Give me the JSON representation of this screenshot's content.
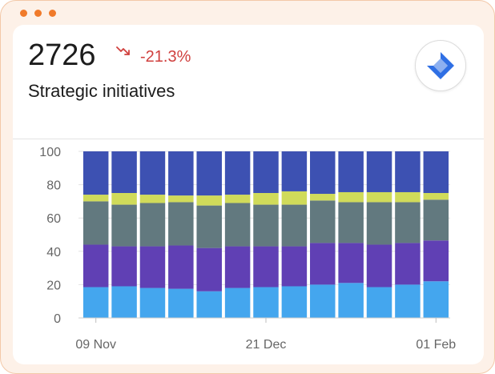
{
  "colors": {
    "frame_dots": "#f07a2a",
    "negative_change": "#d0403e"
  },
  "metric": {
    "value": "2726",
    "change": "-21.3%",
    "trend_icon": "trending-down-icon",
    "label": "Strategic initiatives"
  },
  "logo": {
    "icon": "jira-logo-icon",
    "color": "#2f6fe4"
  },
  "chart_data": {
    "type": "bar",
    "stacked": true,
    "ylim": [
      0,
      100
    ],
    "yticks": [
      "0",
      "20",
      "40",
      "60",
      "80",
      "100"
    ],
    "xticks": [
      {
        "label": "09 Nov",
        "index": 0
      },
      {
        "label": "21 Dec",
        "index": 6
      },
      {
        "label": "01 Feb",
        "index": 12
      }
    ],
    "bar_count": 13,
    "grid": true,
    "legend": "none",
    "series": [
      {
        "color": "#44a6ee",
        "values": [
          18.5,
          19,
          18,
          17.5,
          16,
          18,
          18.5,
          19,
          20,
          21,
          18.5,
          20,
          22
        ]
      },
      {
        "color": "#6040b4",
        "values": [
          25.5,
          24,
          25,
          26,
          26,
          25,
          24.5,
          24,
          25,
          24,
          25.5,
          25,
          24.5
        ]
      },
      {
        "color": "#62797f",
        "values": [
          26,
          25,
          26,
          26,
          25.5,
          26,
          25,
          25,
          25.5,
          24.5,
          25.5,
          24.5,
          24.5
        ]
      },
      {
        "color": "#d0db5a",
        "values": [
          4,
          7,
          5,
          4,
          6,
          5,
          7,
          8,
          4,
          6,
          6,
          6,
          4
        ]
      },
      {
        "color": "#3d51b2",
        "values": [
          26,
          25,
          26,
          26.5,
          26.5,
          26,
          25,
          24,
          25.5,
          24.5,
          24.5,
          24.5,
          25
        ]
      }
    ]
  }
}
